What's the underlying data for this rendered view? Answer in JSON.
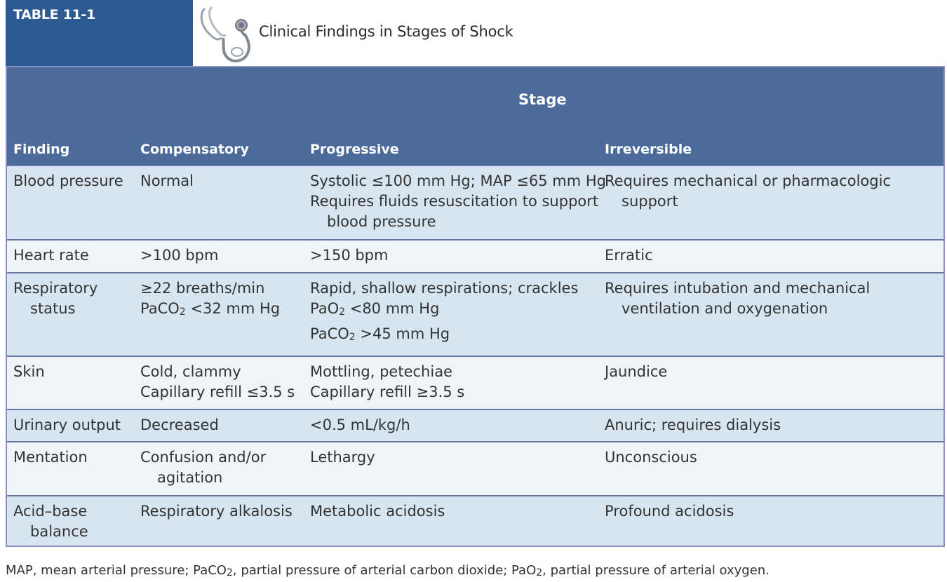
{
  "header": {
    "table_label": "TABLE 11-1",
    "title": "Clinical Findings in Stages of Shock",
    "icon": "stethoscope-icon"
  },
  "table": {
    "group_header": "Stage",
    "columns": [
      "Finding",
      "Compensatory",
      "Progressive",
      "Irreversible"
    ],
    "rows": [
      {
        "finding": [
          "Blood pressure"
        ],
        "compensatory": [
          "Normal"
        ],
        "progressive": [
          "Systolic ≤100 mm Hg; MAP ≤65 mm Hg",
          "Requires fluids resuscitation to support",
          "blood pressure"
        ],
        "irreversible": [
          "Requires mechanical or pharmacologic",
          "support"
        ]
      },
      {
        "finding": [
          "Heart rate"
        ],
        "compensatory": [
          ">100 bpm"
        ],
        "progressive": [
          ">150 bpm"
        ],
        "irreversible": [
          "Erratic"
        ]
      },
      {
        "finding": [
          "Respiratory",
          "status"
        ],
        "compensatory": [
          "≥22 breaths/min",
          "PaCO",
          "2",
          " <32 mm Hg"
        ],
        "progressive": [
          "Rapid, shallow respirations; crackles",
          "PaO",
          "2",
          " <80 mm Hg",
          "PaCO",
          "2",
          " >45 mm Hg"
        ],
        "irreversible": [
          "Requires intubation and mechanical",
          "ventilation and oxygenation"
        ]
      },
      {
        "finding": [
          "Skin"
        ],
        "compensatory": [
          "Cold, clammy",
          "Capillary refill ≤3.5 s"
        ],
        "progressive": [
          "Mottling, petechiae",
          "Capillary refill ≥3.5 s"
        ],
        "irreversible": [
          "Jaundice"
        ]
      },
      {
        "finding": [
          "Urinary output"
        ],
        "compensatory": [
          "Decreased"
        ],
        "progressive": [
          "<0.5 mL/kg/h"
        ],
        "irreversible": [
          "Anuric; requires dialysis"
        ]
      },
      {
        "finding": [
          "Mentation"
        ],
        "compensatory": [
          "Confusion and/or",
          "agitation"
        ],
        "progressive": [
          "Lethargy"
        ],
        "irreversible": [
          "Unconscious"
        ]
      },
      {
        "finding": [
          "Acid–base",
          "balance"
        ],
        "compensatory": [
          "Respiratory alkalosis"
        ],
        "progressive": [
          "Metabolic acidosis"
        ],
        "irreversible": [
          "Profound acidosis"
        ]
      }
    ]
  },
  "footnote": [
    "MAP, mean arterial pressure; PaCO",
    "2",
    ", partial pressure of arterial carbon dioxide; PaO",
    "2",
    ", partial pressure of arterial oxygen."
  ],
  "colors": {
    "tag_bg": "#2e5a93",
    "header_bg": "#4c6b9b",
    "row_shade": "#d6e5ef",
    "row_light": "#eef4f8",
    "border": "#8a8fc4"
  }
}
